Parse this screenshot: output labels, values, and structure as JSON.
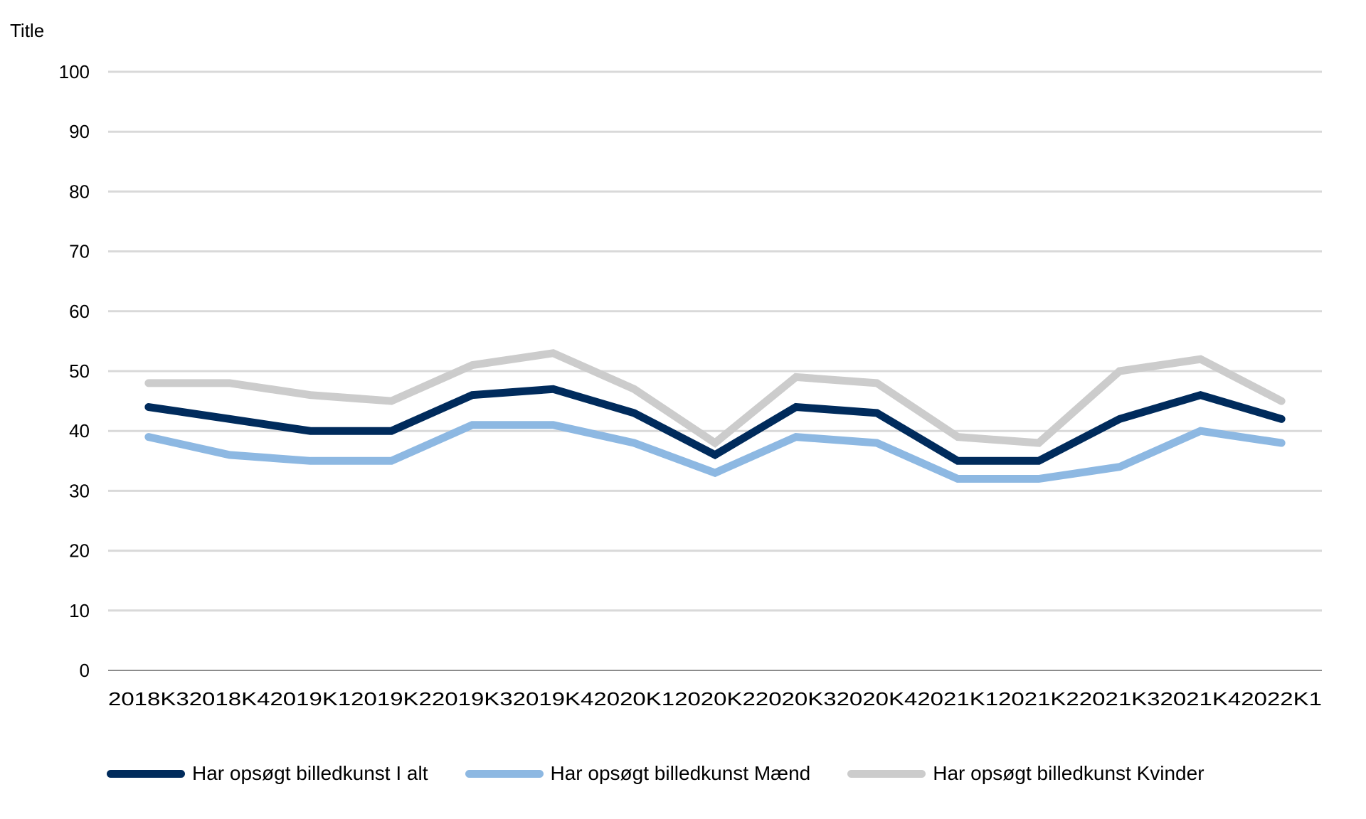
{
  "chart_data": {
    "type": "line",
    "title": "",
    "ylabel": "Title",
    "xlabel": "",
    "ylim": [
      0,
      100
    ],
    "yticks": [
      0,
      10,
      20,
      30,
      40,
      50,
      60,
      70,
      80,
      90,
      100
    ],
    "grid": true,
    "legend_position": "bottom",
    "categories": [
      "2018K3",
      "2018K4",
      "2019K1",
      "2019K2",
      "2019K3",
      "2019K4",
      "2020K1",
      "2020K2",
      "2020K3",
      "2020K4",
      "2021K1",
      "2021K2",
      "2021K3",
      "2021K4",
      "2022K1"
    ],
    "series": [
      {
        "name": "Har opsøgt billedkunst I alt",
        "color": "#002b5c",
        "values": [
          44,
          42,
          40,
          40,
          46,
          47,
          43,
          36,
          44,
          43,
          35,
          35,
          42,
          46,
          42
        ]
      },
      {
        "name": "Har opsøgt billedkunst Mænd",
        "color": "#8db8e2",
        "values": [
          39,
          36,
          35,
          35,
          41,
          41,
          38,
          33,
          39,
          38,
          32,
          32,
          34,
          40,
          38
        ]
      },
      {
        "name": "Har opsøgt billedkunst Kvinder",
        "color": "#cccccc",
        "values": [
          48,
          48,
          46,
          45,
          51,
          53,
          47,
          38,
          49,
          48,
          39,
          38,
          50,
          52,
          45
        ]
      }
    ]
  }
}
